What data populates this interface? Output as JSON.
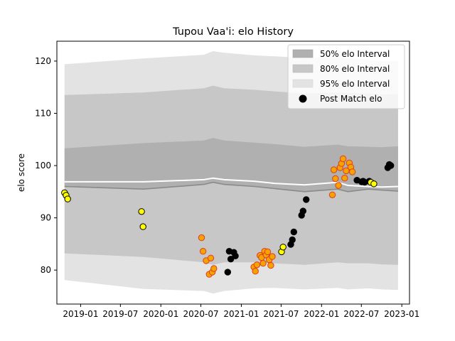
{
  "chart_data": {
    "type": "scatter",
    "title": "Tupou Vaa'i: elo History",
    "xlabel": "",
    "ylabel": "elo score",
    "xlim": [
      "2018-09-15",
      "2023-02-05"
    ],
    "ylim": [
      73.5,
      123.8
    ],
    "x_ticks": [
      "2019-01",
      "2019-07",
      "2020-01",
      "2020-07",
      "2021-01",
      "2021-07",
      "2022-01",
      "2022-07",
      "2023-01"
    ],
    "y_ticks": [
      80,
      90,
      100,
      110,
      120
    ],
    "grid": false,
    "legend_position": "top-right",
    "legend": [
      {
        "label": "50% elo Interval",
        "color": "#b0b0b0"
      },
      {
        "label": "80% elo Interval",
        "color": "#c7c7c7"
      },
      {
        "label": "95% elo Interval",
        "color": "#e3e3e3"
      },
      {
        "label": "Post Match elo",
        "color": "#000000"
      }
    ],
    "bands": {
      "x": [
        "2018-10-20",
        "2019-10-15",
        "2020-07-15",
        "2020-08-25",
        "2020-10-15",
        "2021-03-01",
        "2021-06-01",
        "2021-10-15",
        "2022-03-15",
        "2022-05-01",
        "2022-08-01",
        "2022-10-01",
        "2022-12-15"
      ],
      "median": [
        96.9,
        96.9,
        97.3,
        97.6,
        97.3,
        97.0,
        96.6,
        96.3,
        96.8,
        96.2,
        96.0,
        95.9,
        96.0
      ],
      "p50": [
        [
          96.0,
          103.3
        ],
        [
          95.5,
          104.3
        ],
        [
          96.4,
          104.8
        ],
        [
          96.8,
          105.3
        ],
        [
          96.4,
          104.8
        ],
        [
          96.0,
          104.4
        ],
        [
          95.6,
          104.1
        ],
        [
          95.0,
          103.6
        ],
        [
          95.5,
          104.0
        ],
        [
          95.0,
          103.7
        ],
        [
          95.5,
          103.6
        ],
        [
          95.3,
          103.5
        ],
        [
          95.1,
          103.7
        ]
      ],
      "p80": [
        [
          83.2,
          113.5
        ],
        [
          82.5,
          114.0
        ],
        [
          81.5,
          114.8
        ],
        [
          81.0,
          115.3
        ],
        [
          81.5,
          114.8
        ],
        [
          81.5,
          114.5
        ],
        [
          81.3,
          114.2
        ],
        [
          81.0,
          113.8
        ],
        [
          81.5,
          114.0
        ],
        [
          81.3,
          113.9
        ],
        [
          81.3,
          113.8
        ],
        [
          81.1,
          113.6
        ],
        [
          81.0,
          113.7
        ]
      ],
      "p95": [
        [
          78.1,
          119.4
        ],
        [
          76.4,
          120.5
        ],
        [
          76.0,
          121.2
        ],
        [
          75.5,
          121.9
        ],
        [
          76.0,
          121.6
        ],
        [
          76.5,
          121.1
        ],
        [
          76.6,
          120.9
        ],
        [
          76.3,
          120.6
        ],
        [
          76.6,
          120.9
        ],
        [
          76.3,
          120.6
        ],
        [
          76.5,
          120.2
        ],
        [
          76.3,
          120.0
        ],
        [
          76.2,
          120.0
        ]
      ]
    },
    "series": [
      {
        "name": "Post Match elo",
        "points": [
          {
            "x": "2018-10-20",
            "y": 94.8,
            "fill": "#ffff00",
            "edge": "#000000"
          },
          {
            "x": "2018-10-27",
            "y": 94.3,
            "fill": "#ffff00",
            "edge": "#000000"
          },
          {
            "x": "2018-11-03",
            "y": 93.6,
            "fill": "#ffff00",
            "edge": "#000000"
          },
          {
            "x": "2019-10-05",
            "y": 91.2,
            "fill": "#ffff00",
            "edge": "#000000"
          },
          {
            "x": "2019-10-12",
            "y": 88.3,
            "fill": "#ffff00",
            "edge": "#000000"
          },
          {
            "x": "2020-07-04",
            "y": 86.2,
            "fill": "#f4a300",
            "edge": "#e03c20"
          },
          {
            "x": "2020-07-11",
            "y": 83.6,
            "fill": "#f4a300",
            "edge": "#e03c20"
          },
          {
            "x": "2020-07-25",
            "y": 81.8,
            "fill": "#f4a300",
            "edge": "#e03c20"
          },
          {
            "x": "2020-08-08",
            "y": 79.2,
            "fill": "#f4a300",
            "edge": "#e03c20"
          },
          {
            "x": "2020-08-15",
            "y": 82.3,
            "fill": "#f4a300",
            "edge": "#e03c20"
          },
          {
            "x": "2020-08-22",
            "y": 79.6,
            "fill": "#f4a300",
            "edge": "#e03c20"
          },
          {
            "x": "2020-08-29",
            "y": 80.3,
            "fill": "#f4a300",
            "edge": "#e03c20"
          },
          {
            "x": "2020-10-31",
            "y": 79.6,
            "fill": "#000000",
            "edge": "#000000"
          },
          {
            "x": "2020-11-07",
            "y": 83.6,
            "fill": "#000000",
            "edge": "#000000"
          },
          {
            "x": "2020-11-14",
            "y": 82.1,
            "fill": "#000000",
            "edge": "#000000"
          },
          {
            "x": "2020-11-28",
            "y": 83.4,
            "fill": "#000000",
            "edge": "#000000"
          },
          {
            "x": "2020-12-05",
            "y": 82.7,
            "fill": "#000000",
            "edge": "#000000"
          },
          {
            "x": "2021-02-27",
            "y": 80.6,
            "fill": "#f4a300",
            "edge": "#e03c20"
          },
          {
            "x": "2021-03-06",
            "y": 79.8,
            "fill": "#f4a300",
            "edge": "#e03c20"
          },
          {
            "x": "2021-03-13",
            "y": 81.0,
            "fill": "#f4a300",
            "edge": "#e03c20"
          },
          {
            "x": "2021-03-27",
            "y": 82.8,
            "fill": "#f4a300",
            "edge": "#e03c20"
          },
          {
            "x": "2021-04-03",
            "y": 82.4,
            "fill": "#f4a300",
            "edge": "#e03c20"
          },
          {
            "x": "2021-04-10",
            "y": 81.3,
            "fill": "#f4a300",
            "edge": "#e03c20"
          },
          {
            "x": "2021-04-17",
            "y": 83.6,
            "fill": "#f4a300",
            "edge": "#e03c20"
          },
          {
            "x": "2021-04-24",
            "y": 82.9,
            "fill": "#f4a300",
            "edge": "#e03c20"
          },
          {
            "x": "2021-05-01",
            "y": 83.5,
            "fill": "#f4a300",
            "edge": "#e03c20"
          },
          {
            "x": "2021-05-08",
            "y": 82.0,
            "fill": "#f4a300",
            "edge": "#e03c20"
          },
          {
            "x": "2021-05-15",
            "y": 80.9,
            "fill": "#f4a300",
            "edge": "#e03c20"
          },
          {
            "x": "2021-05-22",
            "y": 82.6,
            "fill": "#f4a300",
            "edge": "#e03c20"
          },
          {
            "x": "2021-07-03",
            "y": 83.5,
            "fill": "#ffff00",
            "edge": "#000000"
          },
          {
            "x": "2021-07-10",
            "y": 84.4,
            "fill": "#ffff00",
            "edge": "#000000"
          },
          {
            "x": "2021-08-14",
            "y": 84.9,
            "fill": "#000000",
            "edge": "#000000"
          },
          {
            "x": "2021-08-21",
            "y": 85.8,
            "fill": "#000000",
            "edge": "#000000"
          },
          {
            "x": "2021-08-28",
            "y": 87.3,
            "fill": "#000000",
            "edge": "#000000"
          },
          {
            "x": "2021-10-02",
            "y": 90.5,
            "fill": "#000000",
            "edge": "#000000"
          },
          {
            "x": "2021-10-09",
            "y": 91.3,
            "fill": "#000000",
            "edge": "#000000"
          },
          {
            "x": "2021-10-23",
            "y": 93.5,
            "fill": "#000000",
            "edge": "#000000"
          },
          {
            "x": "2022-02-19",
            "y": 94.4,
            "fill": "#f4a300",
            "edge": "#e03c20"
          },
          {
            "x": "2022-02-26",
            "y": 99.2,
            "fill": "#f4a300",
            "edge": "#e03c20"
          },
          {
            "x": "2022-03-05",
            "y": 97.5,
            "fill": "#f4a300",
            "edge": "#e03c20"
          },
          {
            "x": "2022-03-19",
            "y": 96.2,
            "fill": "#f4a300",
            "edge": "#e03c20"
          },
          {
            "x": "2022-03-26",
            "y": 99.6,
            "fill": "#f4a300",
            "edge": "#e03c20"
          },
          {
            "x": "2022-04-02",
            "y": 100.4,
            "fill": "#f4a300",
            "edge": "#e03c20"
          },
          {
            "x": "2022-04-09",
            "y": 101.3,
            "fill": "#f4a300",
            "edge": "#e03c20"
          },
          {
            "x": "2022-04-16",
            "y": 97.6,
            "fill": "#f4a300",
            "edge": "#e03c20"
          },
          {
            "x": "2022-04-23",
            "y": 99.0,
            "fill": "#f4a300",
            "edge": "#e03c20"
          },
          {
            "x": "2022-05-07",
            "y": 100.5,
            "fill": "#f4a300",
            "edge": "#e03c20"
          },
          {
            "x": "2022-05-14",
            "y": 99.7,
            "fill": "#f4a300",
            "edge": "#e03c20"
          },
          {
            "x": "2022-05-21",
            "y": 98.8,
            "fill": "#f4a300",
            "edge": "#e03c20"
          },
          {
            "x": "2022-06-11",
            "y": 97.2,
            "fill": "#000000",
            "edge": "#000000"
          },
          {
            "x": "2022-07-02",
            "y": 96.9,
            "fill": "#000000",
            "edge": "#000000"
          },
          {
            "x": "2022-07-09",
            "y": 97.0,
            "fill": "#000000",
            "edge": "#000000"
          },
          {
            "x": "2022-07-16",
            "y": 96.8,
            "fill": "#000000",
            "edge": "#000000"
          },
          {
            "x": "2022-08-06",
            "y": 97.0,
            "fill": "#000000",
            "edge": "#000000"
          },
          {
            "x": "2022-08-13",
            "y": 96.8,
            "fill": "#ffff00",
            "edge": "#000000"
          },
          {
            "x": "2022-08-27",
            "y": 96.5,
            "fill": "#ffff00",
            "edge": "#000000"
          },
          {
            "x": "2022-10-29",
            "y": 99.6,
            "fill": "#000000",
            "edge": "#000000"
          },
          {
            "x": "2022-11-05",
            "y": 100.2,
            "fill": "#000000",
            "edge": "#000000"
          },
          {
            "x": "2022-11-12",
            "y": 100.0,
            "fill": "#000000",
            "edge": "#000000"
          }
        ]
      }
    ]
  }
}
